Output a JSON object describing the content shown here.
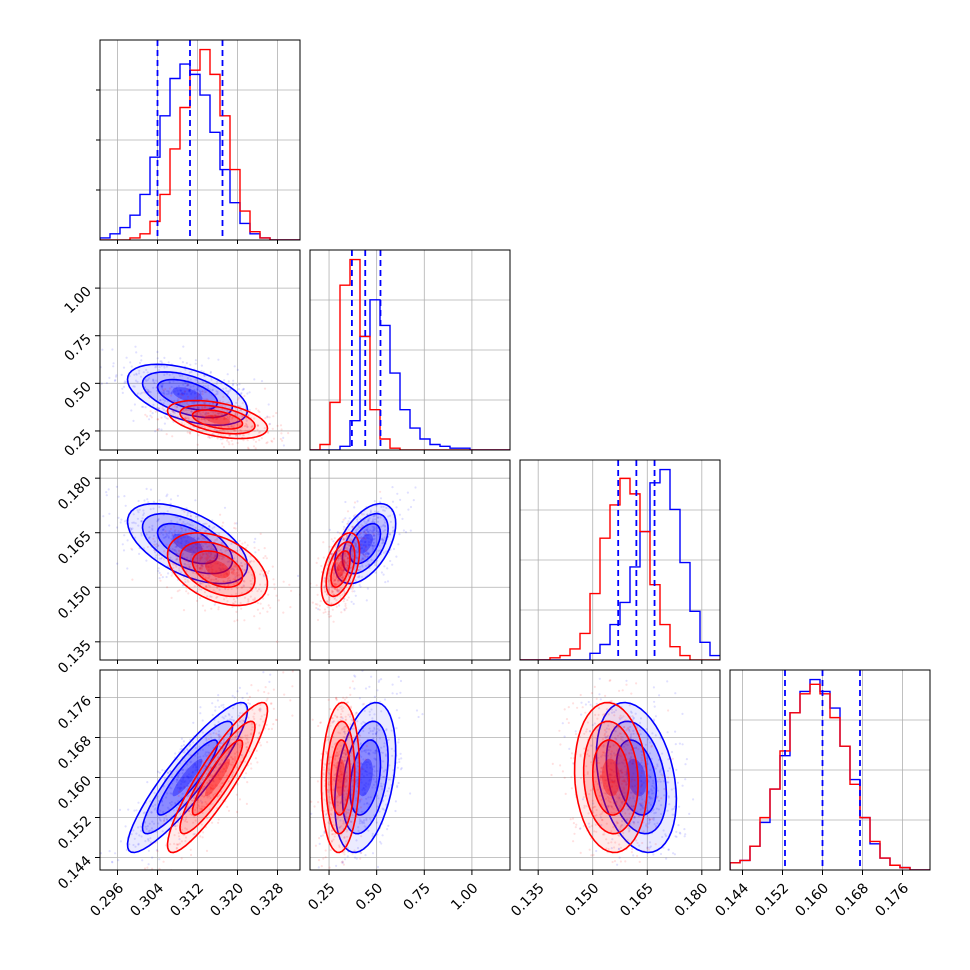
{
  "chart_data": {
    "type": "corner",
    "grid": true,
    "colors": {
      "blue": "#0000ff",
      "red": "#ff0000",
      "grid": "#b0b0b0"
    },
    "series": [
      {
        "color": "blue",
        "means": [
          0.31,
          0.44,
          0.162,
          0.16
        ],
        "sds": [
          0.006,
          0.08,
          0.0055,
          0.0075
        ],
        "corr": [
          [
            1,
            -0.5,
            -0.55,
            0.9
          ],
          [
            -0.5,
            1,
            0.5,
            0.35
          ],
          [
            -0.55,
            0.5,
            1,
            -0.3
          ],
          [
            0.9,
            0.35,
            -0.3,
            1
          ]
        ]
      },
      {
        "color": "red",
        "means": [
          0.316,
          0.31,
          0.155,
          0.16
        ],
        "sds": [
          0.005,
          0.05,
          0.005,
          0.0075
        ],
        "corr": [
          [
            1,
            -0.45,
            -0.4,
            0.9
          ],
          [
            -0.45,
            1,
            0.5,
            0.1
          ],
          [
            -0.4,
            0.5,
            1,
            -0.1
          ],
          [
            0.9,
            0.1,
            -0.1,
            1
          ]
        ]
      }
    ],
    "quantile_lines": [
      [
        0.304,
        0.3105,
        0.317
      ],
      [
        0.37,
        0.44,
        0.52
      ],
      [
        0.157,
        0.162,
        0.167
      ],
      [
        0.1525,
        0.16,
        0.1675
      ]
    ],
    "axes": [
      {
        "range": [
          0.2925,
          0.3325
        ],
        "ticks": [
          "0.296",
          "0.304",
          "0.312",
          "0.320",
          "0.328"
        ]
      },
      {
        "range": [
          0.15,
          1.2
        ],
        "ticks": [
          "0.25",
          "0.50",
          "0.75",
          "1.00"
        ]
      },
      {
        "range": [
          0.13,
          0.185
        ],
        "ticks": [
          "0.135",
          "0.150",
          "0.165",
          "0.180"
        ]
      },
      {
        "range": [
          0.1415,
          0.1815
        ],
        "ticks": [
          "0.144",
          "0.152",
          "0.160",
          "0.168",
          "0.176"
        ]
      }
    ],
    "histograms": [
      {
        "bins": 20,
        "blue": [
          1,
          3,
          6,
          12,
          22,
          40,
          60,
          78,
          85,
          80,
          70,
          52,
          34,
          18,
          8,
          3,
          1,
          0,
          0,
          0
        ],
        "red": [
          0,
          0,
          0,
          1,
          3,
          9,
          22,
          44,
          64,
          82,
          92,
          80,
          60,
          34,
          14,
          4,
          1,
          0,
          0,
          0
        ]
      },
      {
        "bins": 20,
        "blue": [
          0,
          0,
          0,
          2,
          16,
          62,
          82,
          68,
          42,
          22,
          12,
          6,
          3,
          2,
          1,
          1,
          0,
          0,
          0,
          0
        ],
        "red": [
          0,
          3,
          26,
          90,
          104,
          62,
          22,
          6,
          1,
          0,
          0,
          0,
          0,
          0,
          0,
          0,
          0,
          0,
          0,
          0
        ]
      },
      {
        "bins": 20,
        "blue": [
          0,
          0,
          0,
          0,
          0,
          0,
          0,
          3,
          7,
          16,
          26,
          42,
          58,
          80,
          86,
          68,
          44,
          22,
          8,
          2
        ],
        "red": [
          0,
          0,
          0,
          1,
          2,
          5,
          12,
          30,
          55,
          70,
          82,
          75,
          58,
          34,
          16,
          6,
          2,
          0,
          0,
          0
        ]
      },
      {
        "bins": 20,
        "blue": [
          3,
          4,
          10,
          20,
          34,
          48,
          66,
          75,
          80,
          75,
          68,
          52,
          38,
          22,
          11,
          5,
          2,
          1,
          0,
          0
        ],
        "red": [
          3,
          4,
          10,
          22,
          34,
          50,
          66,
          74,
          78,
          74,
          64,
          52,
          36,
          22,
          12,
          5,
          2,
          1,
          0,
          0
        ]
      }
    ]
  }
}
